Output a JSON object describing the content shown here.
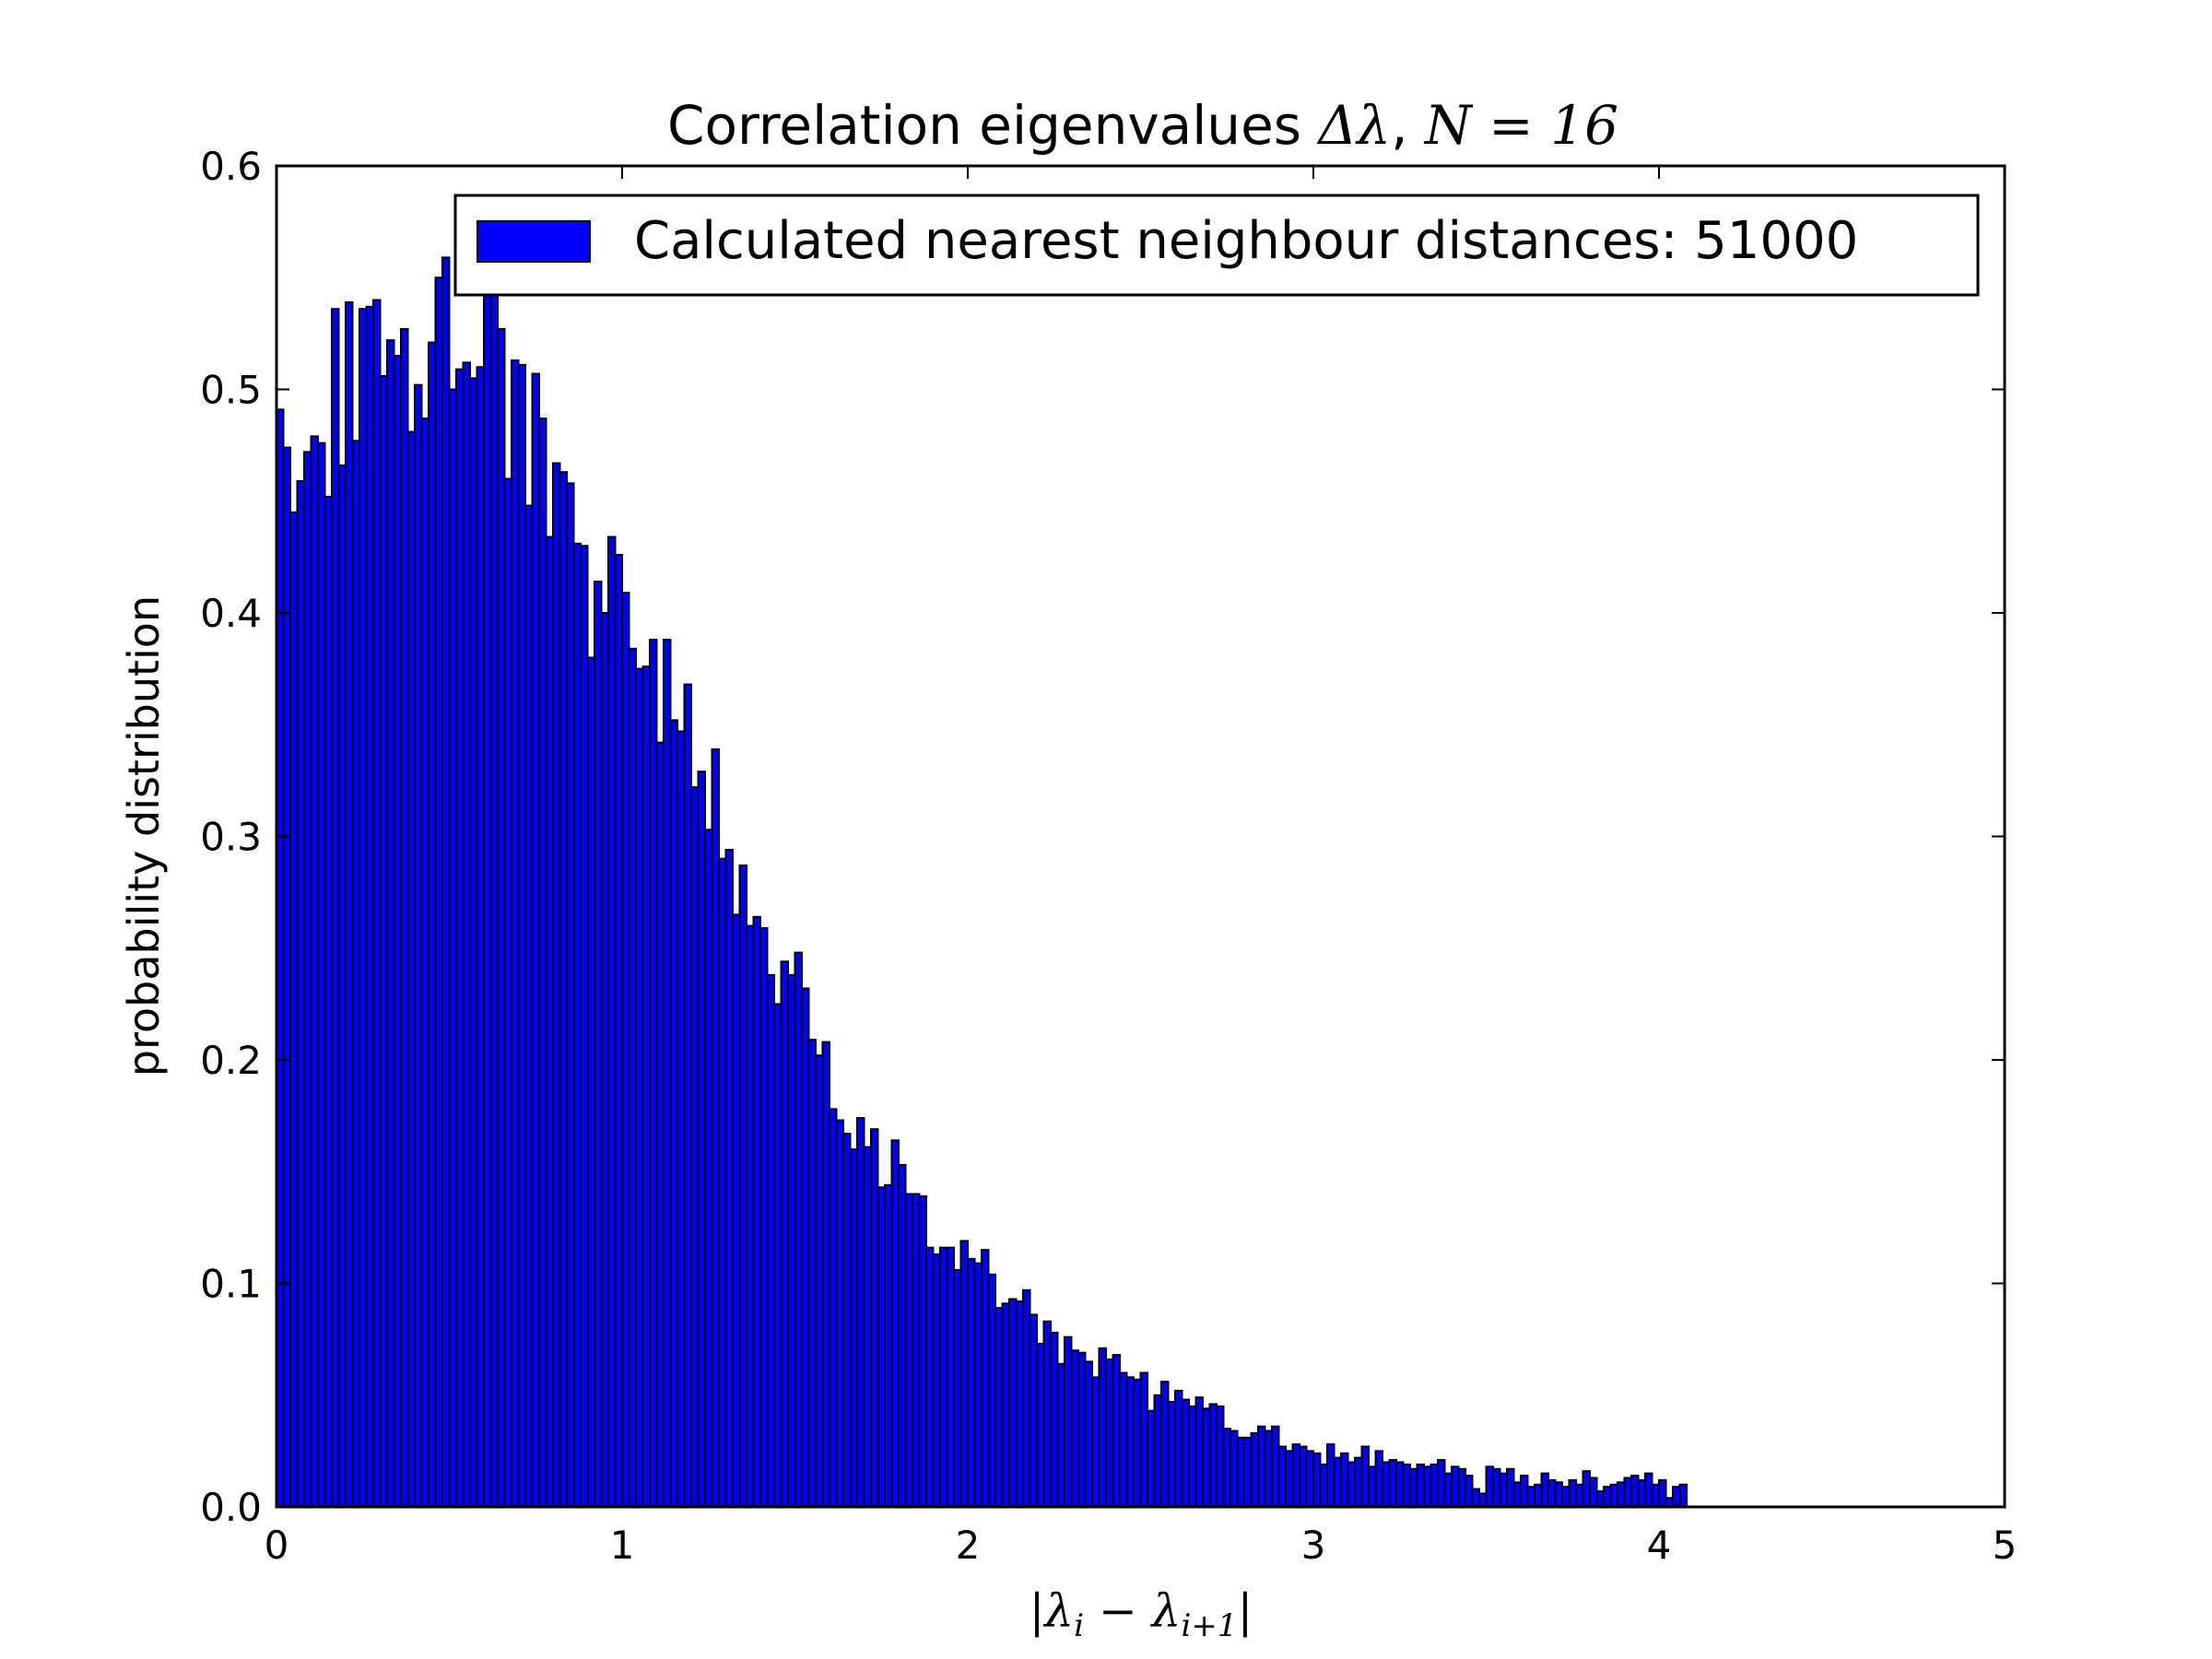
{
  "chart_data": {
    "type": "bar",
    "title_text": "Correlation eigenvalues ",
    "title_math_delta": "Δλ",
    "title_sep": ", ",
    "title_math_n": "N",
    "title_math_eq": " = 16",
    "ylabel": "probability distribution",
    "xlabel_math": "|λ",
    "xlabel_sub_i": "i",
    "xlabel_minus": " − λ",
    "xlabel_sub_i1": "i+1",
    "xlabel_close": "|",
    "legend_label": "Calculated nearest neighbour distances: 51000",
    "legend_location": "upper-right",
    "bar_color": "#0000ff",
    "edge_color": "#000000",
    "bin_width": 0.02,
    "xlim": [
      0,
      5
    ],
    "ylim": [
      0,
      0.6
    ],
    "x_ticks": [
      "0",
      "1",
      "2",
      "3",
      "4",
      "5"
    ],
    "y_ticks": [
      "0.0",
      "0.1",
      "0.2",
      "0.3",
      "0.4",
      "0.5",
      "0.6"
    ],
    "grid": false,
    "values": [
      0.491,
      0.474,
      0.445,
      0.459,
      0.472,
      0.479,
      0.476,
      0.452,
      0.536,
      0.466,
      0.539,
      0.477,
      0.536,
      0.537,
      0.54,
      0.506,
      0.522,
      0.515,
      0.527,
      0.481,
      0.502,
      0.487,
      0.521,
      0.55,
      0.559,
      0.5,
      0.509,
      0.512,
      0.505,
      0.51,
      0.56,
      0.553,
      0.527,
      0.46,
      0.513,
      0.511,
      0.448,
      0.507,
      0.487,
      0.434,
      0.467,
      0.463,
      0.458,
      0.431,
      0.43,
      0.38,
      0.414,
      0.4,
      0.434,
      0.426,
      0.409,
      0.384,
      0.375,
      0.376,
      0.388,
      0.342,
      0.388,
      0.352,
      0.347,
      0.368,
      0.322,
      0.329,
      0.303,
      0.339,
      0.29,
      0.294,
      0.265,
      0.287,
      0.26,
      0.264,
      0.259,
      0.238,
      0.225,
      0.244,
      0.238,
      0.248,
      0.232,
      0.209,
      0.202,
      0.208,
      0.178,
      0.173,
      0.167,
      0.16,
      0.174,
      0.161,
      0.169,
      0.143,
      0.144,
      0.164,
      0.153,
      0.14,
      0.14,
      0.139,
      0.116,
      0.113,
      0.116,
      0.116,
      0.106,
      0.119,
      0.111,
      0.109,
      0.115,
      0.104,
      0.089,
      0.091,
      0.093,
      0.092,
      0.097,
      0.086,
      0.073,
      0.083,
      0.078,
      0.064,
      0.076,
      0.07,
      0.069,
      0.065,
      0.058,
      0.071,
      0.066,
      0.068,
      0.06,
      0.058,
      0.057,
      0.06,
      0.043,
      0.05,
      0.056,
      0.047,
      0.052,
      0.048,
      0.045,
      0.049,
      0.044,
      0.046,
      0.045,
      0.035,
      0.034,
      0.031,
      0.031,
      0.033,
      0.036,
      0.034,
      0.036,
      0.027,
      0.025,
      0.028,
      0.027,
      0.025,
      0.024,
      0.019,
      0.028,
      0.022,
      0.024,
      0.02,
      0.022,
      0.027,
      0.018,
      0.025,
      0.02,
      0.021,
      0.02,
      0.019,
      0.017,
      0.019,
      0.018,
      0.019,
      0.021,
      0.015,
      0.018,
      0.017,
      0.014,
      0.008,
      0.006,
      0.018,
      0.017,
      0.015,
      0.017,
      0.011,
      0.014,
      0.009,
      0.01,
      0.015,
      0.012,
      0.011,
      0.009,
      0.012,
      0.01,
      0.016,
      0.013,
      0.007,
      0.009,
      0.01,
      0.011,
      0.013,
      0.014,
      0.012,
      0.015,
      0.01,
      0.012,
      0.004,
      0.009,
      0.01
    ]
  }
}
